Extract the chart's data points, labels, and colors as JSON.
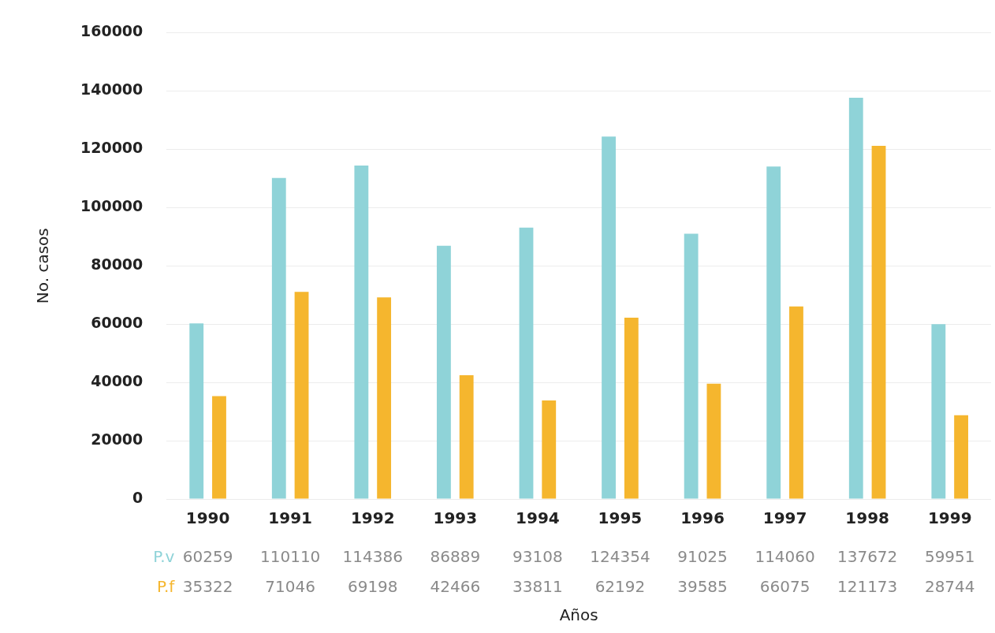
{
  "chart_data": {
    "type": "bar",
    "xlabel": "Años",
    "ylabel": "No. casos",
    "categories": [
      "1990",
      "1991",
      "1992",
      "1993",
      "1994",
      "1995",
      "1996",
      "1997",
      "1998",
      "1999"
    ],
    "series": [
      {
        "name": "P.v",
        "color": "#8fd3d8",
        "values": [
          60259,
          110110,
          114386,
          86889,
          93108,
          124354,
          91025,
          114060,
          137672,
          59951
        ]
      },
      {
        "name": "P.f",
        "color": "#f5b62e",
        "values": [
          35322,
          71046,
          69198,
          42466,
          33811,
          62192,
          39585,
          66075,
          121173,
          28744
        ]
      }
    ],
    "ylim": [
      0,
      160000
    ],
    "yticks": [
      0,
      20000,
      40000,
      60000,
      80000,
      100000,
      120000,
      140000,
      160000
    ],
    "grid": "y",
    "legend": false,
    "data_labels": true
  }
}
